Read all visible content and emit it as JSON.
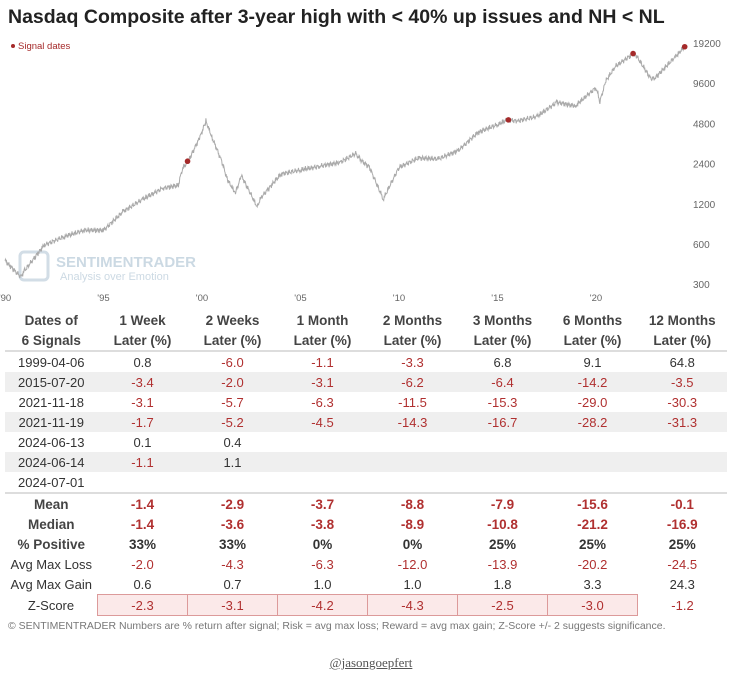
{
  "title": "Nasdaq Composite after 3-year high with < 40% up issues and NH < NL",
  "chart_data": {
    "type": "line",
    "title": "Nasdaq Composite after 3-year high with < 40% up issues and NH < NL",
    "legend": {
      "label": "Signal dates",
      "position": "top-left"
    },
    "y_scale": "log",
    "ylim": [
      300,
      19200
    ],
    "y_ticks": [
      300,
      600,
      1200,
      2400,
      4800,
      9600,
      19200
    ],
    "x_ticks": [
      "'90",
      "'95",
      "'00",
      "'05",
      "'10",
      "'15",
      "'20"
    ],
    "x_range": [
      1990,
      2024.6
    ],
    "series": [
      {
        "x": [
          1990,
          1990.8,
          1991,
          1992,
          1993,
          1994,
          1995,
          1996,
          1997,
          1998,
          1998.8,
          1999,
          1999.3,
          1999.9,
          2000.2,
          2000.5,
          2001,
          2001.3,
          2001.7,
          2002,
          2002.8,
          2003,
          2004,
          2005,
          2006,
          2007,
          2007.8,
          2008,
          2008.5,
          2009.2,
          2010,
          2011,
          2012,
          2013,
          2014,
          2015,
          2015.5,
          2016,
          2017,
          2018,
          2018.9,
          2019,
          2020,
          2020.2,
          2020.5,
          2021,
          2021.9,
          2022,
          2022.8,
          2023,
          2024,
          2024.5
        ],
        "y": [
          450,
          340,
          380,
          590,
          680,
          760,
          760,
          1050,
          1300,
          1570,
          1650,
          2200,
          2500,
          3800,
          5000,
          3800,
          2500,
          1800,
          1450,
          1950,
          1140,
          1340,
          2000,
          2150,
          2300,
          2450,
          2850,
          2600,
          2250,
          1300,
          2250,
          2650,
          2600,
          3000,
          4100,
          4700,
          5100,
          5000,
          5400,
          6900,
          6500,
          6600,
          8900,
          7000,
          10000,
          12900,
          16000,
          15800,
          10300,
          10500,
          15000,
          18000
        ]
      }
    ],
    "signals": [
      {
        "date": "1999-04-06",
        "y": 2500
      },
      {
        "date": "2015-07-20",
        "y": 5100
      },
      {
        "date": "2021-11-18",
        "y": 16000
      },
      {
        "date": "2024-07-01",
        "y": 18000
      }
    ],
    "watermark": {
      "brand": "SENTIMENTRADER",
      "tagline": "Analysis over Emotion"
    },
    "signal_color": "#a52a2a",
    "line_color": "#aaaaaa"
  },
  "table": {
    "header_top": [
      "Dates of",
      "1 Week",
      "2 Weeks",
      "1 Month",
      "2 Months",
      "3 Months",
      "6 Months",
      "12 Months"
    ],
    "header_bottom": [
      "6 Signals",
      "Later (%)",
      "Later (%)",
      "Later (%)",
      "Later (%)",
      "Later (%)",
      "Later (%)",
      "Later (%)"
    ],
    "rows": [
      [
        "1999-04-06",
        "0.8",
        "-6.0",
        "-1.1",
        "-3.3",
        "6.8",
        "9.1",
        "64.8"
      ],
      [
        "2015-07-20",
        "-3.4",
        "-2.0",
        "-3.1",
        "-6.2",
        "-6.4",
        "-14.2",
        "-3.5"
      ],
      [
        "2021-11-18",
        "-3.1",
        "-5.7",
        "-6.3",
        "-11.5",
        "-15.3",
        "-29.0",
        "-30.3"
      ],
      [
        "2021-11-19",
        "-1.7",
        "-5.2",
        "-4.5",
        "-14.3",
        "-16.7",
        "-28.2",
        "-31.3"
      ],
      [
        "2024-06-13",
        "0.1",
        "0.4",
        "",
        "",
        "",
        "",
        ""
      ],
      [
        "2024-06-14",
        "-1.1",
        "1.1",
        "",
        "",
        "",
        "",
        ""
      ],
      [
        "2024-07-01",
        "",
        "",
        "",
        "",
        "",
        "",
        ""
      ]
    ],
    "stats": [
      [
        "Mean",
        "-1.4",
        "-2.9",
        "-3.7",
        "-8.8",
        "-7.9",
        "-15.6",
        "-0.1"
      ],
      [
        "Median",
        "-1.4",
        "-3.6",
        "-3.8",
        "-8.9",
        "-10.8",
        "-21.2",
        "-16.9"
      ],
      [
        "% Positive",
        "33%",
        "33%",
        "0%",
        "0%",
        "25%",
        "25%",
        "25%"
      ],
      [
        "Avg Max Loss",
        "-2.0",
        "-4.3",
        "-6.3",
        "-12.0",
        "-13.9",
        "-20.2",
        "-24.5"
      ],
      [
        "Avg Max Gain",
        "0.6",
        "0.7",
        "1.0",
        "1.0",
        "1.8",
        "3.3",
        "24.3"
      ],
      [
        "Z-Score",
        "-2.3",
        "-3.1",
        "-4.2",
        "-4.3",
        "-2.5",
        "-3.0",
        "-1.2"
      ]
    ]
  },
  "footer": "© SENTIMENTRADER  Numbers are % return after signal; Risk = avg max loss; Reward = avg max gain; Z-Score +/- 2 suggests significance.",
  "handle": "@jasongoepfert"
}
